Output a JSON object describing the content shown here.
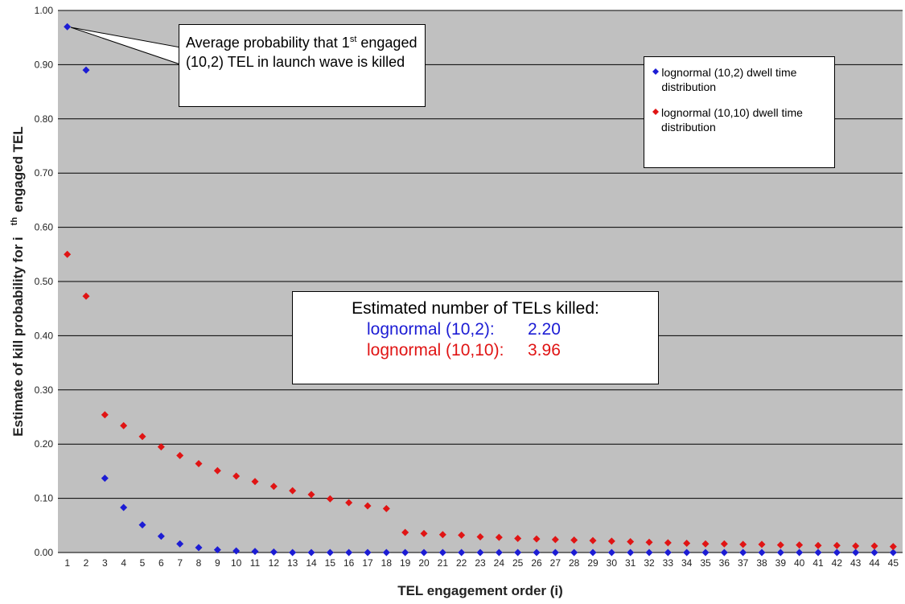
{
  "chart_data": {
    "type": "scatter",
    "y_label": {
      "main": "Estimate of kill probability for i",
      "sup": "th",
      "rest": "engaged TEL"
    },
    "x_label": "TEL engagement order (i)",
    "categories": [
      "1",
      "2",
      "3",
      "4",
      "5",
      "6",
      "7",
      "8",
      "9",
      "10",
      "11",
      "12",
      "13",
      "14",
      "15",
      "16",
      "17",
      "18",
      "19",
      "20",
      "21",
      "22",
      "23",
      "24",
      "25",
      "26",
      "27",
      "28",
      "29",
      "30",
      "31",
      "32",
      "33",
      "34",
      "35",
      "36",
      "37",
      "38",
      "39",
      "40",
      "41",
      "42",
      "43",
      "44",
      "45"
    ],
    "series": [
      {
        "name": "lognormal (10,2) dwell time distribution",
        "color": "#1c1cd4",
        "values": [
          0.97,
          0.89,
          0.137,
          0.083,
          0.051,
          0.03,
          0.016,
          0.009,
          0.005,
          0.003,
          0.002,
          0.001,
          0,
          0,
          0,
          0,
          0,
          0,
          0,
          0,
          0,
          0,
          0,
          0,
          0,
          0,
          0,
          0,
          0,
          0,
          0,
          0,
          0,
          0,
          0,
          0,
          0,
          0,
          0,
          0,
          0,
          0,
          0,
          0,
          0
        ]
      },
      {
        "name": "lognormal (10,10) dwell time distribution",
        "color": "#e01414",
        "values": [
          0.55,
          0.473,
          0.254,
          0.234,
          0.214,
          0.195,
          0.179,
          0.164,
          0.151,
          0.141,
          0.131,
          0.122,
          0.114,
          0.107,
          0.099,
          0.092,
          0.086,
          0.081,
          0.037,
          0.035,
          0.033,
          0.032,
          0.029,
          0.028,
          0.026,
          0.025,
          0.024,
          0.023,
          0.022,
          0.021,
          0.02,
          0.019,
          0.018,
          0.017,
          0.016,
          0.016,
          0.015,
          0.015,
          0.014,
          0.014,
          0.013,
          0.013,
          0.012,
          0.012,
          0.011
        ]
      }
    ],
    "ylim": [
      0,
      1
    ],
    "yticks": [
      {
        "value": 0,
        "label": "0.00"
      },
      {
        "value": 0.1,
        "label": "0.10"
      },
      {
        "value": 0.2,
        "label": "0.20"
      },
      {
        "value": 0.3,
        "label": "0.30"
      },
      {
        "value": 0.4,
        "label": "0.40"
      },
      {
        "value": 0.5,
        "label": "0.50"
      },
      {
        "value": 0.6,
        "label": "0.60"
      },
      {
        "value": 0.7,
        "label": "0.70"
      },
      {
        "value": 0.8,
        "label": "0.80"
      },
      {
        "value": 0.9,
        "label": "0.90"
      },
      {
        "value": 1,
        "label": "1.00"
      }
    ],
    "grid": true,
    "legend": "upper right",
    "annotation": {
      "main": "Average probability that 1",
      "sup": "st",
      "rest": "engaged (10,2) TEL in launch wave is killed"
    },
    "summary": {
      "title": "Estimated number of TELs killed:",
      "rows": [
        {
          "label": "lognormal (10,2):",
          "value": 2.2,
          "value_label": "2.20"
        },
        {
          "label": "lognormal (10,10):",
          "value": 3.96,
          "value_label": "3.96"
        }
      ]
    }
  }
}
